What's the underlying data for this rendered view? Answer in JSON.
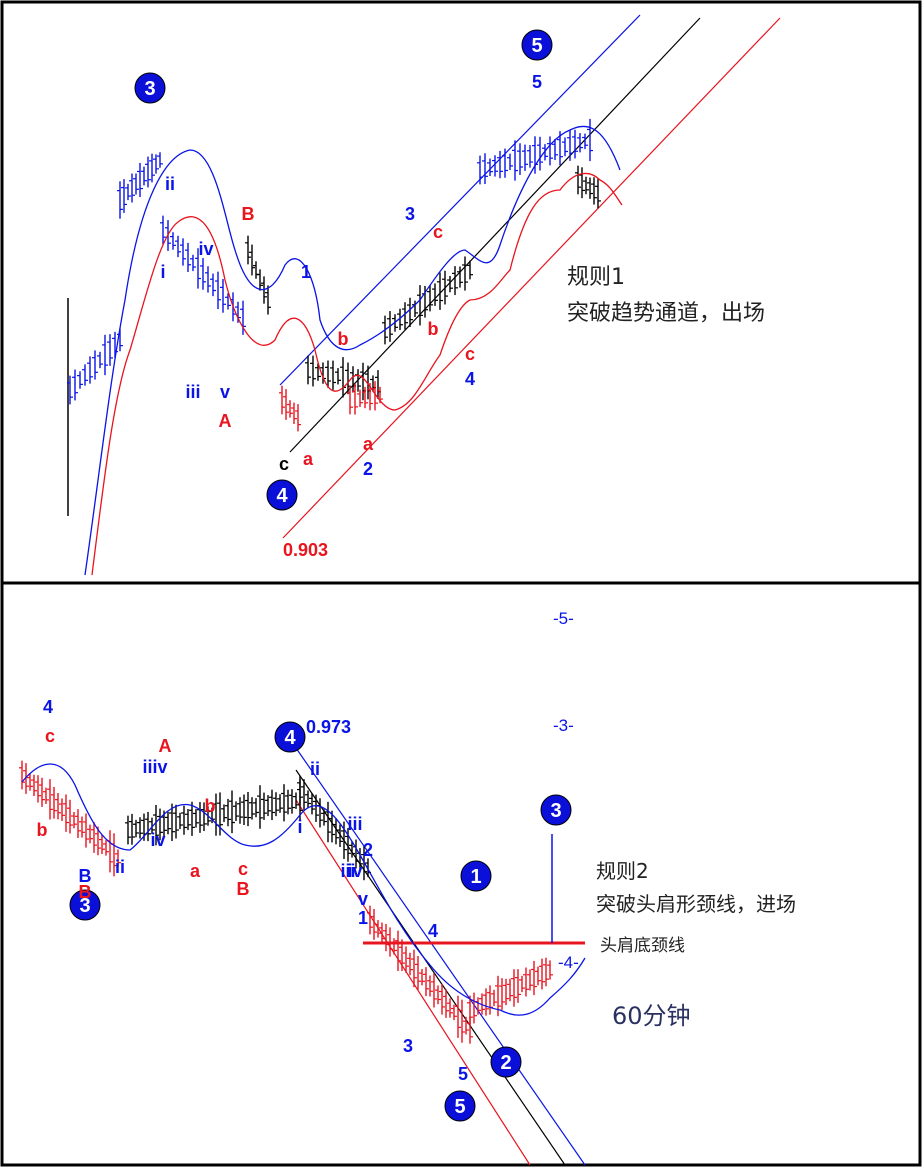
{
  "colors": {
    "blue": "#0a14e6",
    "red": "#e8141e",
    "black": "#000000",
    "circle": "#0a10d8",
    "circle_text": "#ffffff"
  },
  "chart_data": [
    {
      "type": "line",
      "annotations": {
        "rule_title": "规则1",
        "rule_text": "突破趋势通道，出场",
        "ratio": "0.903"
      },
      "wave_labels": {
        "circled": [
          "3",
          "4",
          "5"
        ],
        "blue": [
          "5",
          "3",
          "ii",
          "i",
          "iv",
          "iii",
          "v",
          "1",
          "2",
          "4"
        ],
        "red": [
          "B",
          "A",
          "b",
          "a",
          "c",
          "b",
          "a",
          "c"
        ],
        "black": [
          "c"
        ]
      }
    },
    {
      "type": "line",
      "annotations": {
        "rule_title": "规则2",
        "rule_text": "突破头肩形颈线，进场",
        "neckline": "头肩底颈线",
        "timeframe": "60分钟",
        "ratio": "0.973",
        "target_top": "-5-",
        "target_mid": "-3-",
        "target_low": "-4-"
      },
      "wave_labels": {
        "circled": [
          "3",
          "4",
          "3",
          "1",
          "2",
          "5"
        ],
        "blue": [
          "4",
          "B",
          "ii",
          "i",
          "iiiv",
          "iv",
          "ii",
          "iii",
          "iv",
          "2",
          "iii",
          "v",
          "1",
          "4",
          "3",
          "5"
        ],
        "red": [
          "c",
          "b",
          "A",
          "b",
          "a",
          "c",
          "B",
          "B"
        ]
      }
    }
  ]
}
